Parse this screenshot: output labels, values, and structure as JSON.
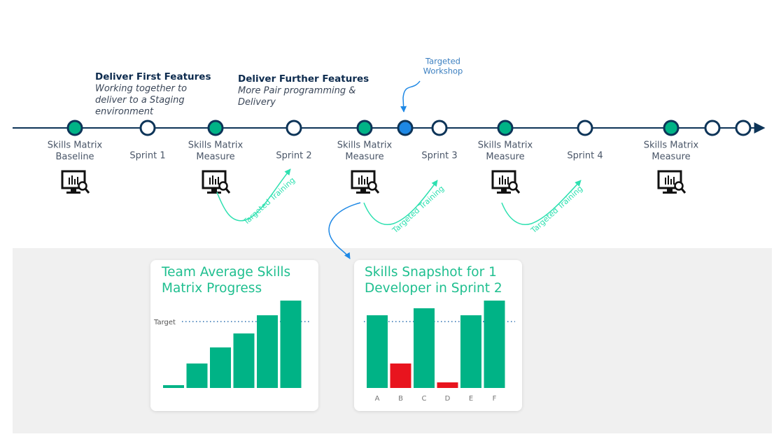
{
  "annotations": [
    {
      "title": "Deliver First Features",
      "lines": [
        "Working together to",
        "deliver to a Staging",
        "environment"
      ]
    },
    {
      "title": "Deliver Further Features",
      "lines": [
        "More Pair programming &",
        "Delivery"
      ]
    }
  ],
  "workshop": [
    "Targeted",
    "Workshop"
  ],
  "timeline": [
    {
      "color": "#00b386",
      "label": [
        "Skills Matrix",
        "Baseline"
      ]
    },
    {
      "color": "#ffffff",
      "label": [
        "Sprint 1"
      ]
    },
    {
      "color": "#00b386",
      "label": [
        "Skills Matrix",
        "Measure"
      ]
    },
    {
      "color": "#ffffff",
      "label": [
        "Sprint 2"
      ]
    },
    {
      "color": "#00b386",
      "label": [
        "Skills Matrix",
        "Measure"
      ]
    },
    {
      "color": "#1e88e5",
      "label": []
    },
    {
      "color": "#ffffff",
      "label": [
        "Sprint 3"
      ]
    },
    {
      "color": "#00b386",
      "label": [
        "Skills Matrix",
        "Measure"
      ]
    },
    {
      "color": "#ffffff",
      "label": [
        "Sprint 4"
      ]
    },
    {
      "color": "#00b386",
      "label": [
        "Skills Matrix",
        "Measure"
      ]
    },
    {
      "color": "#ffffff",
      "label": []
    },
    {
      "color": "#ffffff",
      "label": []
    }
  ],
  "training": [
    "Targeted Training",
    "Targeted Training",
    "Targeted Training"
  ],
  "charts": [
    {
      "type": "bar",
      "title": [
        "Team Average Skills",
        "Matrix Progress"
      ],
      "target_label": "Target",
      "target": 95,
      "ylim": [
        0,
        130
      ],
      "values": [
        4,
        35,
        58,
        78,
        104,
        125
      ],
      "colors": [
        "#00b386",
        "#00b386",
        "#00b386",
        "#00b386",
        "#00b386",
        "#00b386"
      ]
    },
    {
      "type": "bar",
      "title": [
        "Skills Snapshot for 1",
        "Developer in Sprint 2"
      ],
      "target": 95,
      "ylim": [
        0,
        130
      ],
      "categories": [
        "A",
        "B",
        "C",
        "D",
        "E",
        "F"
      ],
      "values": [
        104,
        35,
        114,
        8,
        104,
        125
      ],
      "colors": [
        "#00b386",
        "#e8141e",
        "#00b386",
        "#e8141e",
        "#00b386",
        "#00b386"
      ]
    }
  ]
}
